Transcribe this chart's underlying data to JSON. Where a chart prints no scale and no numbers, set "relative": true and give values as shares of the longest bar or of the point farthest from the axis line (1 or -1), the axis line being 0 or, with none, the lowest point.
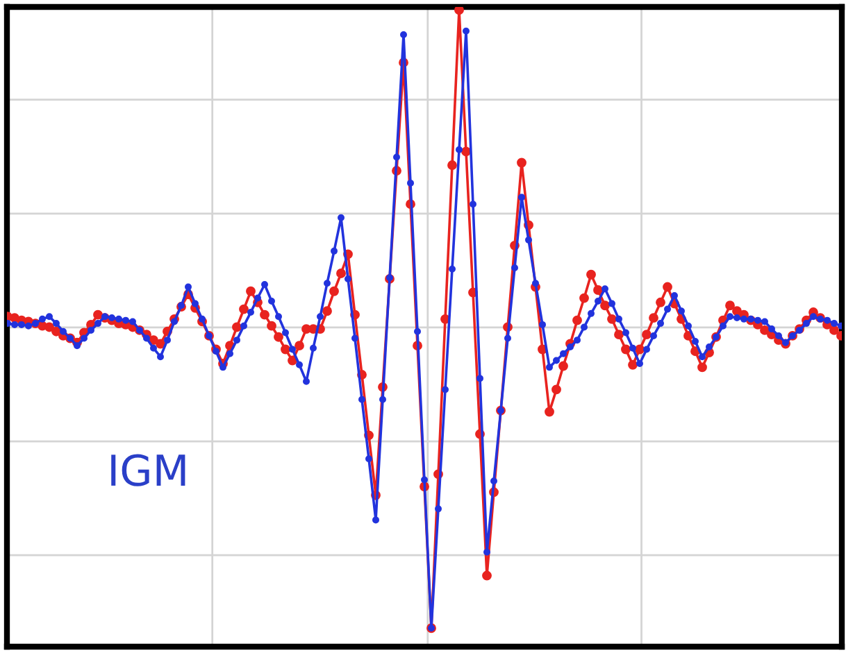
{
  "chart_data": {
    "type": "line",
    "relative": true,
    "grid": true,
    "marker": "circle",
    "line_style": "solid",
    "annotations": [
      "IGM"
    ],
    "categories": [
      null,
      null,
      null,
      null,
      null,
      null,
      null,
      null,
      null,
      null,
      null,
      null,
      null,
      null,
      null,
      null,
      null,
      null,
      null,
      null,
      null,
      null,
      null,
      null,
      null,
      null,
      null,
      null,
      null,
      null,
      null,
      null,
      null,
      null,
      null,
      null,
      null,
      null,
      null,
      null,
      null,
      null,
      null,
      null,
      null,
      null,
      null,
      null,
      null,
      null,
      null,
      null,
      null,
      null,
      null,
      null,
      null,
      null,
      null,
      null,
      null,
      null,
      null,
      null,
      null,
      null,
      null,
      null,
      null,
      null,
      null,
      null,
      null,
      null,
      null,
      null,
      null,
      null,
      null,
      null,
      null,
      null,
      null,
      null,
      null,
      null,
      null,
      null,
      null,
      null,
      null,
      null,
      null,
      null,
      null,
      null,
      null,
      null,
      null,
      null,
      null,
      null,
      null,
      null,
      null,
      null,
      null,
      null,
      null,
      null,
      null,
      null,
      null,
      null,
      null,
      null,
      null,
      null,
      null,
      null,
      null
    ],
    "series": [
      {
        "color": "#e8231f",
        "values": [
          0.504,
          0.502,
          0.498,
          0.496,
          0.493,
          0.489,
          0.487,
          0.48,
          0.473,
          0.469,
          0.462,
          0.478,
          0.491,
          0.507,
          0.502,
          0.498,
          0.493,
          0.491,
          0.487,
          0.482,
          0.475,
          0.466,
          0.46,
          0.48,
          0.5,
          0.52,
          0.54,
          0.518,
          0.496,
          0.473,
          0.451,
          0.428,
          0.457,
          0.487,
          0.516,
          0.545,
          0.527,
          0.507,
          0.489,
          0.471,
          0.451,
          0.433,
          0.457,
          0.484,
          0.484,
          0.484,
          0.513,
          0.545,
          0.574,
          0.605,
          0.507,
          0.41,
          0.312,
          0.215,
          0.39,
          0.565,
          0.74,
          0.915,
          0.686,
          0.457,
          0.229,
          0,
          0.249,
          0.5,
          0.749,
          1,
          0.771,
          0.543,
          0.314,
          0.085,
          0.22,
          0.352,
          0.487,
          0.619,
          0.753,
          0.652,
          0.552,
          0.451,
          0.35,
          0.386,
          0.424,
          0.46,
          0.498,
          0.534,
          0.572,
          0.547,
          0.522,
          0.5,
          0.475,
          0.451,
          0.426,
          0.451,
          0.475,
          0.502,
          0.527,
          0.552,
          0.525,
          0.5,
          0.473,
          0.448,
          0.422,
          0.446,
          0.471,
          0.498,
          0.522,
          0.513,
          0.507,
          0.498,
          0.491,
          0.482,
          0.475,
          0.466,
          0.46,
          0.473,
          0.484,
          0.498,
          0.511,
          0.502,
          0.491,
          0.482,
          0.473
        ]
      },
      {
        "color": "#2233dd",
        "values": [
          0.493,
          0.491,
          0.491,
          0.489,
          0.493,
          0.5,
          0.504,
          0.493,
          0.48,
          0.469,
          0.457,
          0.469,
          0.482,
          0.493,
          0.504,
          0.502,
          0.5,
          0.498,
          0.496,
          0.482,
          0.469,
          0.453,
          0.439,
          0.466,
          0.496,
          0.522,
          0.552,
          0.525,
          0.5,
          0.473,
          0.448,
          0.422,
          0.444,
          0.466,
          0.489,
          0.511,
          0.534,
          0.556,
          0.529,
          0.504,
          0.478,
          0.451,
          0.426,
          0.399,
          0.453,
          0.504,
          0.558,
          0.61,
          0.664,
          0.565,
          0.469,
          0.37,
          0.274,
          0.175,
          0.37,
          0.567,
          0.762,
          0.96,
          0.72,
          0.48,
          0.24,
          0,
          0.193,
          0.386,
          0.581,
          0.774,
          0.966,
          0.686,
          0.404,
          0.123,
          0.238,
          0.352,
          0.469,
          0.583,
          0.697,
          0.628,
          0.558,
          0.491,
          0.422,
          0.433,
          0.444,
          0.455,
          0.466,
          0.487,
          0.509,
          0.529,
          0.549,
          0.525,
          0.5,
          0.478,
          0.453,
          0.428,
          0.451,
          0.473,
          0.493,
          0.516,
          0.538,
          0.513,
          0.489,
          0.464,
          0.439,
          0.455,
          0.471,
          0.489,
          0.504,
          0.502,
          0.5,
          0.5,
          0.498,
          0.496,
          0.484,
          0.473,
          0.462,
          0.473,
          0.482,
          0.493,
          0.504,
          0.5,
          0.498,
          0.493,
          0.489
        ]
      }
    ]
  }
}
